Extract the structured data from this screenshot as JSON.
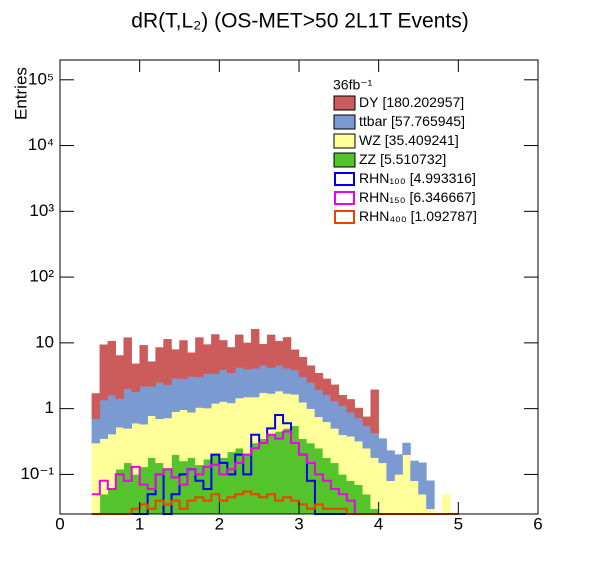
{
  "chart_data": {
    "type": "stacked_histogram",
    "title": "dR(T,L₂) (OS-MET>50 2L1T Events)",
    "y_label": "Entries",
    "legend_title": "36fb⁻¹",
    "log_y": true,
    "xlim": [
      0,
      6
    ],
    "xticks": [
      0,
      1,
      2,
      3,
      4,
      5,
      6
    ],
    "ylim": [
      0.025,
      200000
    ],
    "yticks": [
      {
        "value": 0.1,
        "label": "10⁻¹"
      },
      1,
      10,
      {
        "value": 100,
        "label": "10²"
      },
      {
        "value": 1000,
        "label": "10³"
      },
      {
        "value": 10000,
        "label": "10⁴"
      },
      {
        "value": 100000,
        "label": "10⁵"
      }
    ],
    "bins": [
      0.4,
      0.5,
      0.6,
      0.7,
      0.8,
      0.9,
      1.0,
      1.1,
      1.2,
      1.3,
      1.4,
      1.5,
      1.6,
      1.7,
      1.8,
      1.9,
      2.0,
      2.1,
      2.2,
      2.3,
      2.4,
      2.5,
      2.6,
      2.7,
      2.8,
      2.9,
      3.0,
      3.1,
      3.2,
      3.3,
      3.4,
      3.5,
      3.6,
      3.7,
      3.8,
      3.9,
      4.0,
      4.1,
      4.2,
      4.3,
      4.4,
      4.5,
      4.6,
      4.7,
      4.8,
      4.9,
      5.0
    ],
    "series": [
      {
        "name": "DY",
        "label": "[180.202957]",
        "color": "#cc5c5c",
        "stacked": true,
        "values": [
          1.0,
          8,
          9,
          5,
          10,
          3,
          7,
          3,
          6,
          9,
          5,
          8,
          4,
          9,
          6,
          10,
          7,
          5,
          9,
          6,
          12,
          5,
          9,
          6,
          8,
          4,
          3,
          2,
          1.5,
          1.2,
          1,
          0.5,
          0.5,
          0.3,
          0.2,
          1.5,
          0,
          0,
          0,
          0,
          0,
          0,
          0,
          0,
          0,
          0
        ]
      },
      {
        "name": "ttbar",
        "label": "[57.765945]",
        "color": "#7b9ad2",
        "stacked": true,
        "values": [
          0.4,
          1.0,
          1.2,
          0.9,
          1.5,
          1.2,
          1.6,
          1.4,
          1.8,
          1.6,
          2.0,
          1.9,
          2.2,
          2.0,
          2.4,
          2.2,
          2.6,
          2.3,
          2.8,
          2.5,
          2.6,
          2.8,
          2.5,
          2.7,
          2.4,
          2.2,
          1.8,
          1.5,
          1.2,
          1.0,
          0.8,
          0.7,
          0.5,
          0.4,
          0.3,
          0.25,
          0.2,
          0.15,
          0.1,
          0.1,
          0.08,
          0.1,
          0.05,
          0,
          0,
          0
        ]
      },
      {
        "name": "WZ",
        "label": "[35.409241]",
        "color": "#ffff99",
        "stacked": true,
        "values": [
          0.3,
          0.3,
          0.35,
          0.4,
          0.35,
          0.5,
          0.45,
          0.6,
          0.55,
          0.6,
          0.7,
          0.8,
          0.7,
          0.9,
          0.85,
          1.0,
          1.1,
          1.0,
          1.2,
          1.3,
          1.2,
          1.4,
          1.3,
          1.4,
          1.2,
          1.1,
          0.9,
          0.7,
          0.5,
          0.45,
          0.35,
          0.3,
          0.3,
          0.25,
          0.2,
          0.15,
          0.15,
          0.08,
          0.1,
          0.2,
          0.08,
          0.05,
          0.03,
          0,
          0.05,
          0
        ]
      },
      {
        "name": "ZZ",
        "label": "[5.510732]",
        "color": "#55c42c",
        "stacked": true,
        "values": [
          0,
          0.05,
          0.06,
          0.12,
          0.15,
          0.1,
          0.13,
          0.18,
          0.15,
          0.12,
          0.2,
          0.16,
          0.18,
          0.14,
          0.17,
          0.2,
          0.18,
          0.22,
          0.25,
          0.2,
          0.3,
          0.35,
          0.4,
          0.45,
          0.5,
          0.55,
          0.35,
          0.3,
          0.25,
          0.18,
          0.15,
          0.1,
          0.08,
          0.07,
          0.05,
          0.03,
          0,
          0,
          0,
          0,
          0,
          0,
          0,
          0,
          0,
          0
        ]
      },
      {
        "name": "RHN₁₀₀",
        "label": "[4.993316]",
        "color": "#0000ee",
        "stacked": false,
        "values": [
          0,
          0,
          0,
          0,
          0,
          0,
          0,
          0.05,
          0.1,
          0,
          0.05,
          0.1,
          0.12,
          0.08,
          0.06,
          0.2,
          0.15,
          0.1,
          0.2,
          0.1,
          0.4,
          0.3,
          0.5,
          0.8,
          0.6,
          0.3,
          0.2,
          0.08,
          0,
          0,
          0,
          0,
          0,
          0,
          0,
          0,
          0,
          0,
          0,
          0,
          0,
          0,
          0,
          0,
          0,
          0
        ]
      },
      {
        "name": "RHN₁₅₀",
        "label": "[6.346667]",
        "color": "#ee00ee",
        "stacked": false,
        "values": [
          0.05,
          0.08,
          0.06,
          0.1,
          0.08,
          0.13,
          0.07,
          0.06,
          0.1,
          0.12,
          0.09,
          0.07,
          0.12,
          0.1,
          0.13,
          0.14,
          0.1,
          0.12,
          0.15,
          0.2,
          0.25,
          0.3,
          0.4,
          0.35,
          0.45,
          0.3,
          0.2,
          0.15,
          0.1,
          0.08,
          0.06,
          0.05,
          0.04,
          0,
          0,
          0,
          0,
          0,
          0,
          0,
          0,
          0,
          0,
          0,
          0,
          0
        ]
      },
      {
        "name": "RHN₄₀₀",
        "label": "[1.092787]",
        "color": "#ee4000",
        "stacked": false,
        "values": [
          0,
          0,
          0,
          0,
          0,
          0.03,
          0.035,
          0.03,
          0.04,
          0.035,
          0.04,
          0.03,
          0.04,
          0.045,
          0.04,
          0.05,
          0.04,
          0.045,
          0.05,
          0.055,
          0.05,
          0.045,
          0.05,
          0.04,
          0.045,
          0.04,
          0.035,
          0.03,
          0.035,
          0.03,
          0.03,
          0.03,
          0,
          0,
          0,
          0,
          0,
          0,
          0,
          0,
          0,
          0,
          0,
          0,
          0,
          0
        ]
      }
    ]
  }
}
